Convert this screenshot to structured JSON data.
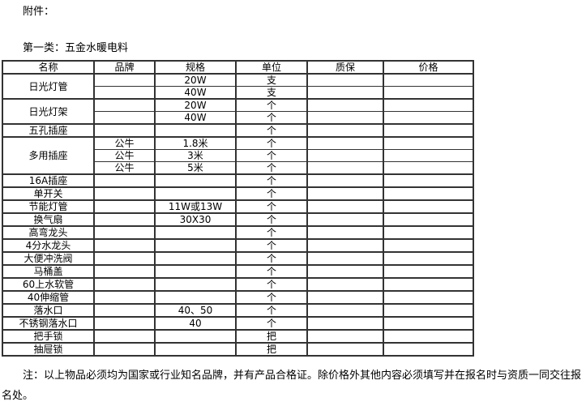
{
  "page": {
    "attachment_label": "附件：",
    "category_title": "第一类：五金水暖电料",
    "note": "注：以上物品必须均为国家或行业知名品牌，并有产品合格证。除价格外其他内容必须填写并在报名时与资质一同交往报名处。"
  },
  "colors": {
    "border": "#333333",
    "text": "#000000",
    "background": "#ffffff"
  },
  "table": {
    "headers": [
      "名称",
      "品牌",
      "规格",
      "单位",
      "质保",
      "价格"
    ],
    "rows": [
      {
        "name": "日光灯管",
        "subrows": [
          {
            "brand": "",
            "spec": "20W",
            "unit": "支",
            "warranty": "",
            "price": ""
          },
          {
            "brand": "",
            "spec": "40W",
            "unit": "支",
            "warranty": "",
            "price": ""
          }
        ]
      },
      {
        "name": "日光灯架",
        "subrows": [
          {
            "brand": "",
            "spec": "20W",
            "unit": "个",
            "warranty": "",
            "price": ""
          },
          {
            "brand": "",
            "spec": "40W",
            "unit": "个",
            "warranty": "",
            "price": ""
          }
        ]
      },
      {
        "name": "五孔插座",
        "subrows": [
          {
            "brand": "",
            "spec": "",
            "unit": "个",
            "warranty": "",
            "price": ""
          }
        ]
      },
      {
        "name": "多用插座",
        "subrows": [
          {
            "brand": "公牛",
            "spec": "1.8米",
            "unit": "个",
            "warranty": "",
            "price": ""
          },
          {
            "brand": "公牛",
            "spec": "3米",
            "unit": "个",
            "warranty": "",
            "price": ""
          },
          {
            "brand": "公牛",
            "spec": "5米",
            "unit": "个",
            "warranty": "",
            "price": ""
          }
        ]
      },
      {
        "name": "16A插座",
        "subrows": [
          {
            "brand": "",
            "spec": "",
            "unit": "个",
            "warranty": "",
            "price": ""
          }
        ]
      },
      {
        "name": "单开关",
        "subrows": [
          {
            "brand": "",
            "spec": "",
            "unit": "个",
            "warranty": "",
            "price": ""
          }
        ]
      },
      {
        "name": "节能灯管",
        "subrows": [
          {
            "brand": "",
            "spec": "11W或13W",
            "unit": "个",
            "warranty": "",
            "price": ""
          }
        ]
      },
      {
        "name": "换气扇",
        "subrows": [
          {
            "brand": "",
            "spec": "30X30",
            "unit": "个",
            "warranty": "",
            "price": ""
          }
        ]
      },
      {
        "name": "高弯龙头",
        "subrows": [
          {
            "brand": "",
            "spec": "",
            "unit": "个",
            "warranty": "",
            "price": ""
          }
        ]
      },
      {
        "name": "4分水龙头",
        "subrows": [
          {
            "brand": "",
            "spec": "",
            "unit": "个",
            "warranty": "",
            "price": ""
          }
        ]
      },
      {
        "name": "大便冲洗阀",
        "subrows": [
          {
            "brand": "",
            "spec": "",
            "unit": "个",
            "warranty": "",
            "price": ""
          }
        ]
      },
      {
        "name": "马桶盖",
        "subrows": [
          {
            "brand": "",
            "spec": "",
            "unit": "个",
            "warranty": "",
            "price": ""
          }
        ]
      },
      {
        "name": "60上水软管",
        "subrows": [
          {
            "brand": "",
            "spec": "",
            "unit": "个",
            "warranty": "",
            "price": ""
          }
        ]
      },
      {
        "name": "40伸缩管",
        "subrows": [
          {
            "brand": "",
            "spec": "",
            "unit": "个",
            "warranty": "",
            "price": ""
          }
        ]
      },
      {
        "name": "落水口",
        "subrows": [
          {
            "brand": "",
            "spec": "40、50",
            "unit": "个",
            "warranty": "",
            "price": ""
          }
        ]
      },
      {
        "name": "不锈钢落水口",
        "subrows": [
          {
            "brand": "",
            "spec": "40",
            "unit": "个",
            "warranty": "",
            "price": ""
          }
        ]
      },
      {
        "name": "把手锁",
        "subrows": [
          {
            "brand": "",
            "spec": "",
            "unit": "把",
            "warranty": "",
            "price": ""
          }
        ]
      },
      {
        "name": "抽屉锁",
        "subrows": [
          {
            "brand": "",
            "spec": "",
            "unit": "把",
            "warranty": "",
            "price": ""
          }
        ]
      }
    ]
  }
}
